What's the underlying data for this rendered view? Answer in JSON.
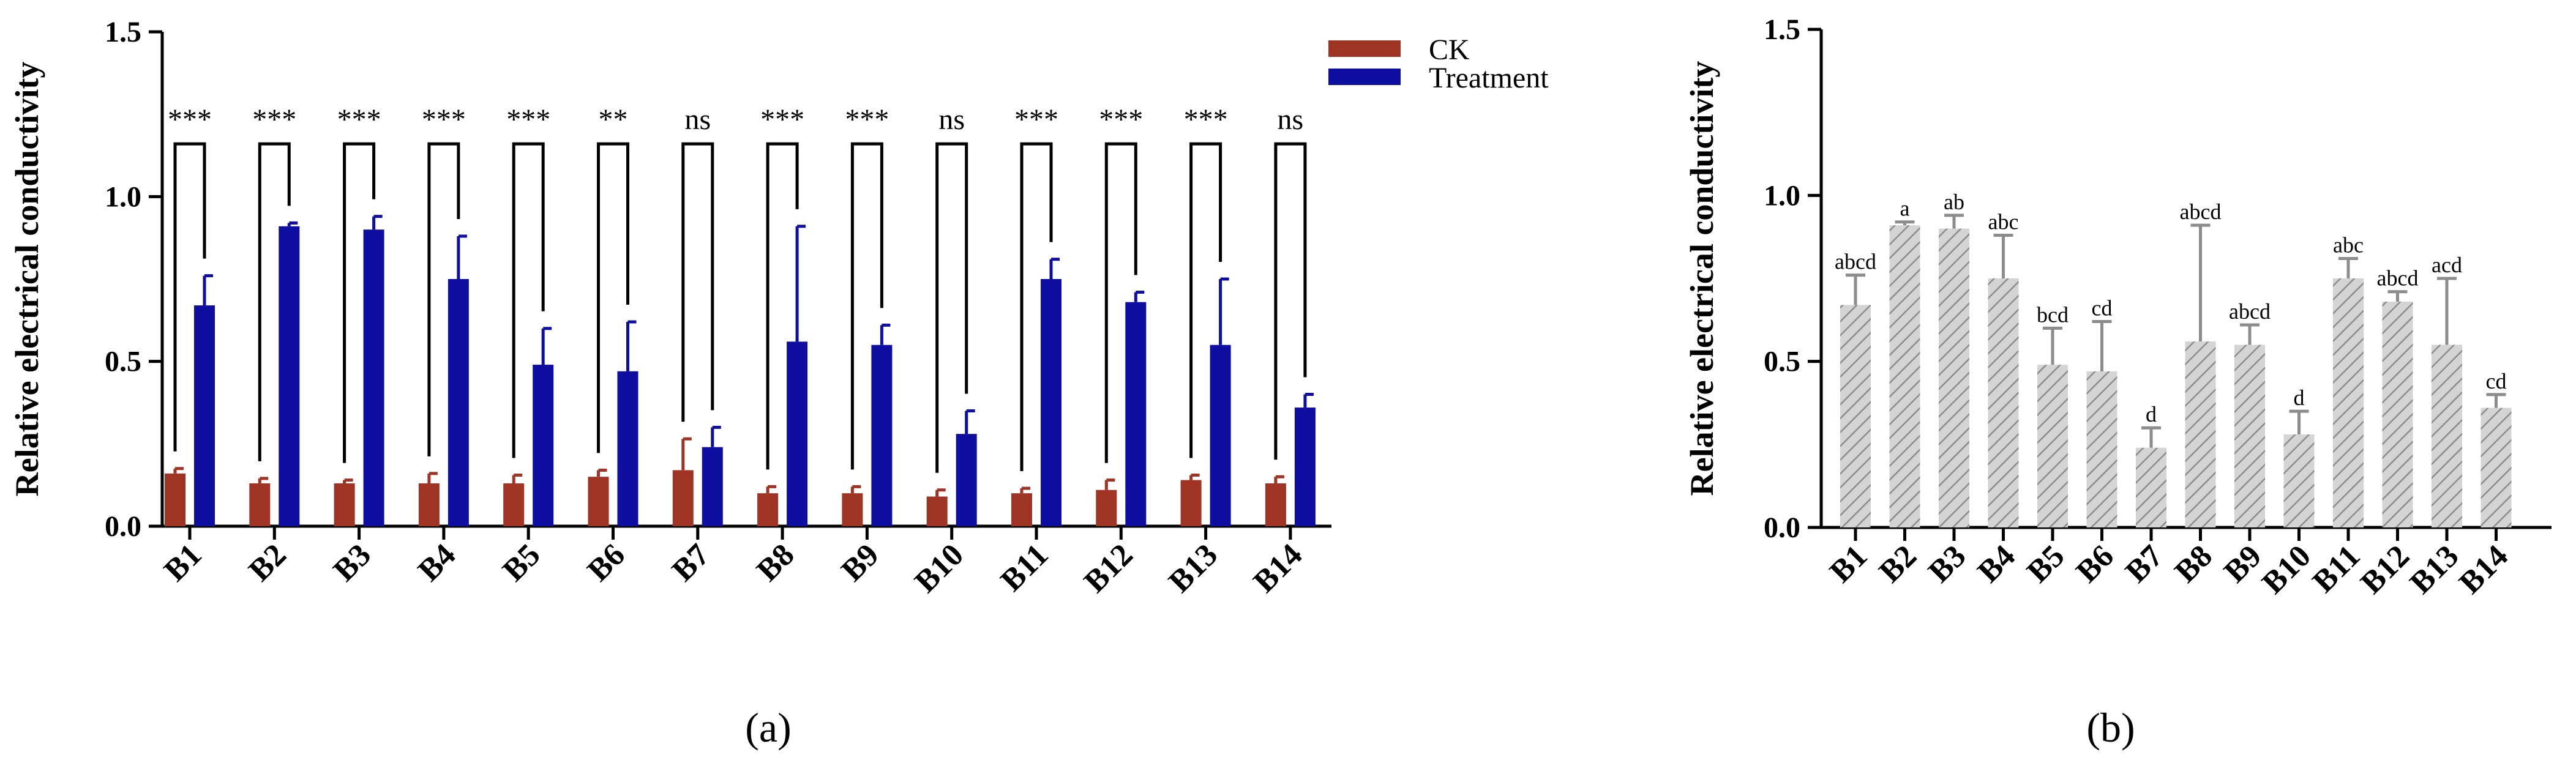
{
  "chart_data": [
    {
      "type": "bar",
      "panel_label": "(a)",
      "categories": [
        "B1",
        "B2",
        "B3",
        "B4",
        "B5",
        "B6",
        "B7",
        "B8",
        "B9",
        "B10",
        "B11",
        "B12",
        "B13",
        "B14"
      ],
      "ylabel": "Relative electrical conductivity",
      "ylim": [
        0,
        1.5
      ],
      "yticks": [
        "0.0",
        "0.5",
        "1.0",
        "1.5"
      ],
      "grid": false,
      "legend_position": "top-right",
      "series": [
        {
          "name": "CK",
          "color": "#a03424",
          "values": [
            0.16,
            0.13,
            0.13,
            0.13,
            0.13,
            0.15,
            0.17,
            0.1,
            0.1,
            0.09,
            0.1,
            0.11,
            0.14,
            0.13
          ],
          "errors": [
            0.015,
            0.015,
            0.01,
            0.03,
            0.025,
            0.02,
            0.095,
            0.02,
            0.02,
            0.02,
            0.015,
            0.03,
            0.015,
            0.02
          ]
        },
        {
          "name": "Treatment",
          "color": "#0e0ea0",
          "values": [
            0.67,
            0.91,
            0.9,
            0.75,
            0.49,
            0.47,
            0.24,
            0.56,
            0.55,
            0.28,
            0.75,
            0.68,
            0.55,
            0.36
          ],
          "errors": [
            0.09,
            0.01,
            0.04,
            0.13,
            0.11,
            0.15,
            0.06,
            0.35,
            0.06,
            0.07,
            0.06,
            0.03,
            0.2,
            0.04
          ]
        }
      ],
      "significance": [
        "***",
        "***",
        "***",
        "***",
        "***",
        "**",
        "ns",
        "***",
        "***",
        "ns",
        "***",
        "***",
        "***",
        "ns"
      ]
    },
    {
      "type": "bar",
      "panel_label": "(b)",
      "categories": [
        "B1",
        "B2",
        "B3",
        "B4",
        "B5",
        "B6",
        "B7",
        "B8",
        "B9",
        "B10",
        "B11",
        "B12",
        "B13",
        "B14"
      ],
      "ylabel": "Relative electrical conductivity",
      "ylim": [
        0,
        1.5
      ],
      "yticks": [
        "0.0",
        "0.5",
        "1.0",
        "1.5"
      ],
      "grid": false,
      "bar_fill": "#d4d4d4",
      "hatch_color": "#8c8c8c",
      "error_color": "#8c8c8c",
      "values": [
        0.67,
        0.91,
        0.9,
        0.75,
        0.49,
        0.47,
        0.24,
        0.56,
        0.55,
        0.28,
        0.75,
        0.68,
        0.55,
        0.36
      ],
      "errors": [
        0.09,
        0.01,
        0.04,
        0.13,
        0.11,
        0.15,
        0.06,
        0.35,
        0.06,
        0.07,
        0.06,
        0.03,
        0.2,
        0.04
      ],
      "letters": [
        "abcd",
        "a",
        "ab",
        "abc",
        "bcd",
        "cd",
        "d",
        "abcd",
        "abcd",
        "d",
        "abc",
        "abcd",
        "acd",
        "cd"
      ]
    }
  ]
}
